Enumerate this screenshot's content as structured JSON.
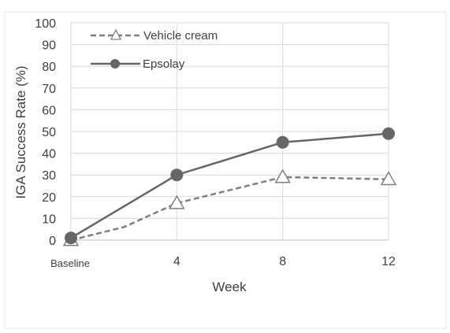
{
  "chart_data": {
    "type": "line",
    "x": [
      "Baseline",
      "4",
      "8",
      "12"
    ],
    "x_values": [
      0,
      4,
      8,
      12
    ],
    "xlabel": "Week",
    "ylabel": "IGA Success Rate (%)",
    "ylim": [
      0,
      100
    ],
    "yticks": [
      0,
      10,
      20,
      30,
      40,
      50,
      60,
      70,
      80,
      90,
      100
    ],
    "grid": true,
    "legend_position": "top-left",
    "series": [
      {
        "name": "Vehicle cream",
        "color": "#7f7f7f",
        "line_style": "dashed",
        "marker": "triangle-open",
        "points": [
          [
            0,
            0
          ],
          [
            2,
            6
          ],
          [
            4,
            17
          ],
          [
            8,
            29
          ],
          [
            12,
            28
          ]
        ],
        "marked_x": [
          0,
          4,
          8,
          12
        ]
      },
      {
        "name": "Epsolay",
        "color": "#666666",
        "line_style": "solid",
        "marker": "circle-filled",
        "points": [
          [
            0,
            1
          ],
          [
            4,
            30
          ],
          [
            8,
            45
          ],
          [
            12,
            49
          ]
        ],
        "marked_x": [
          0,
          4,
          8,
          12
        ]
      }
    ]
  }
}
